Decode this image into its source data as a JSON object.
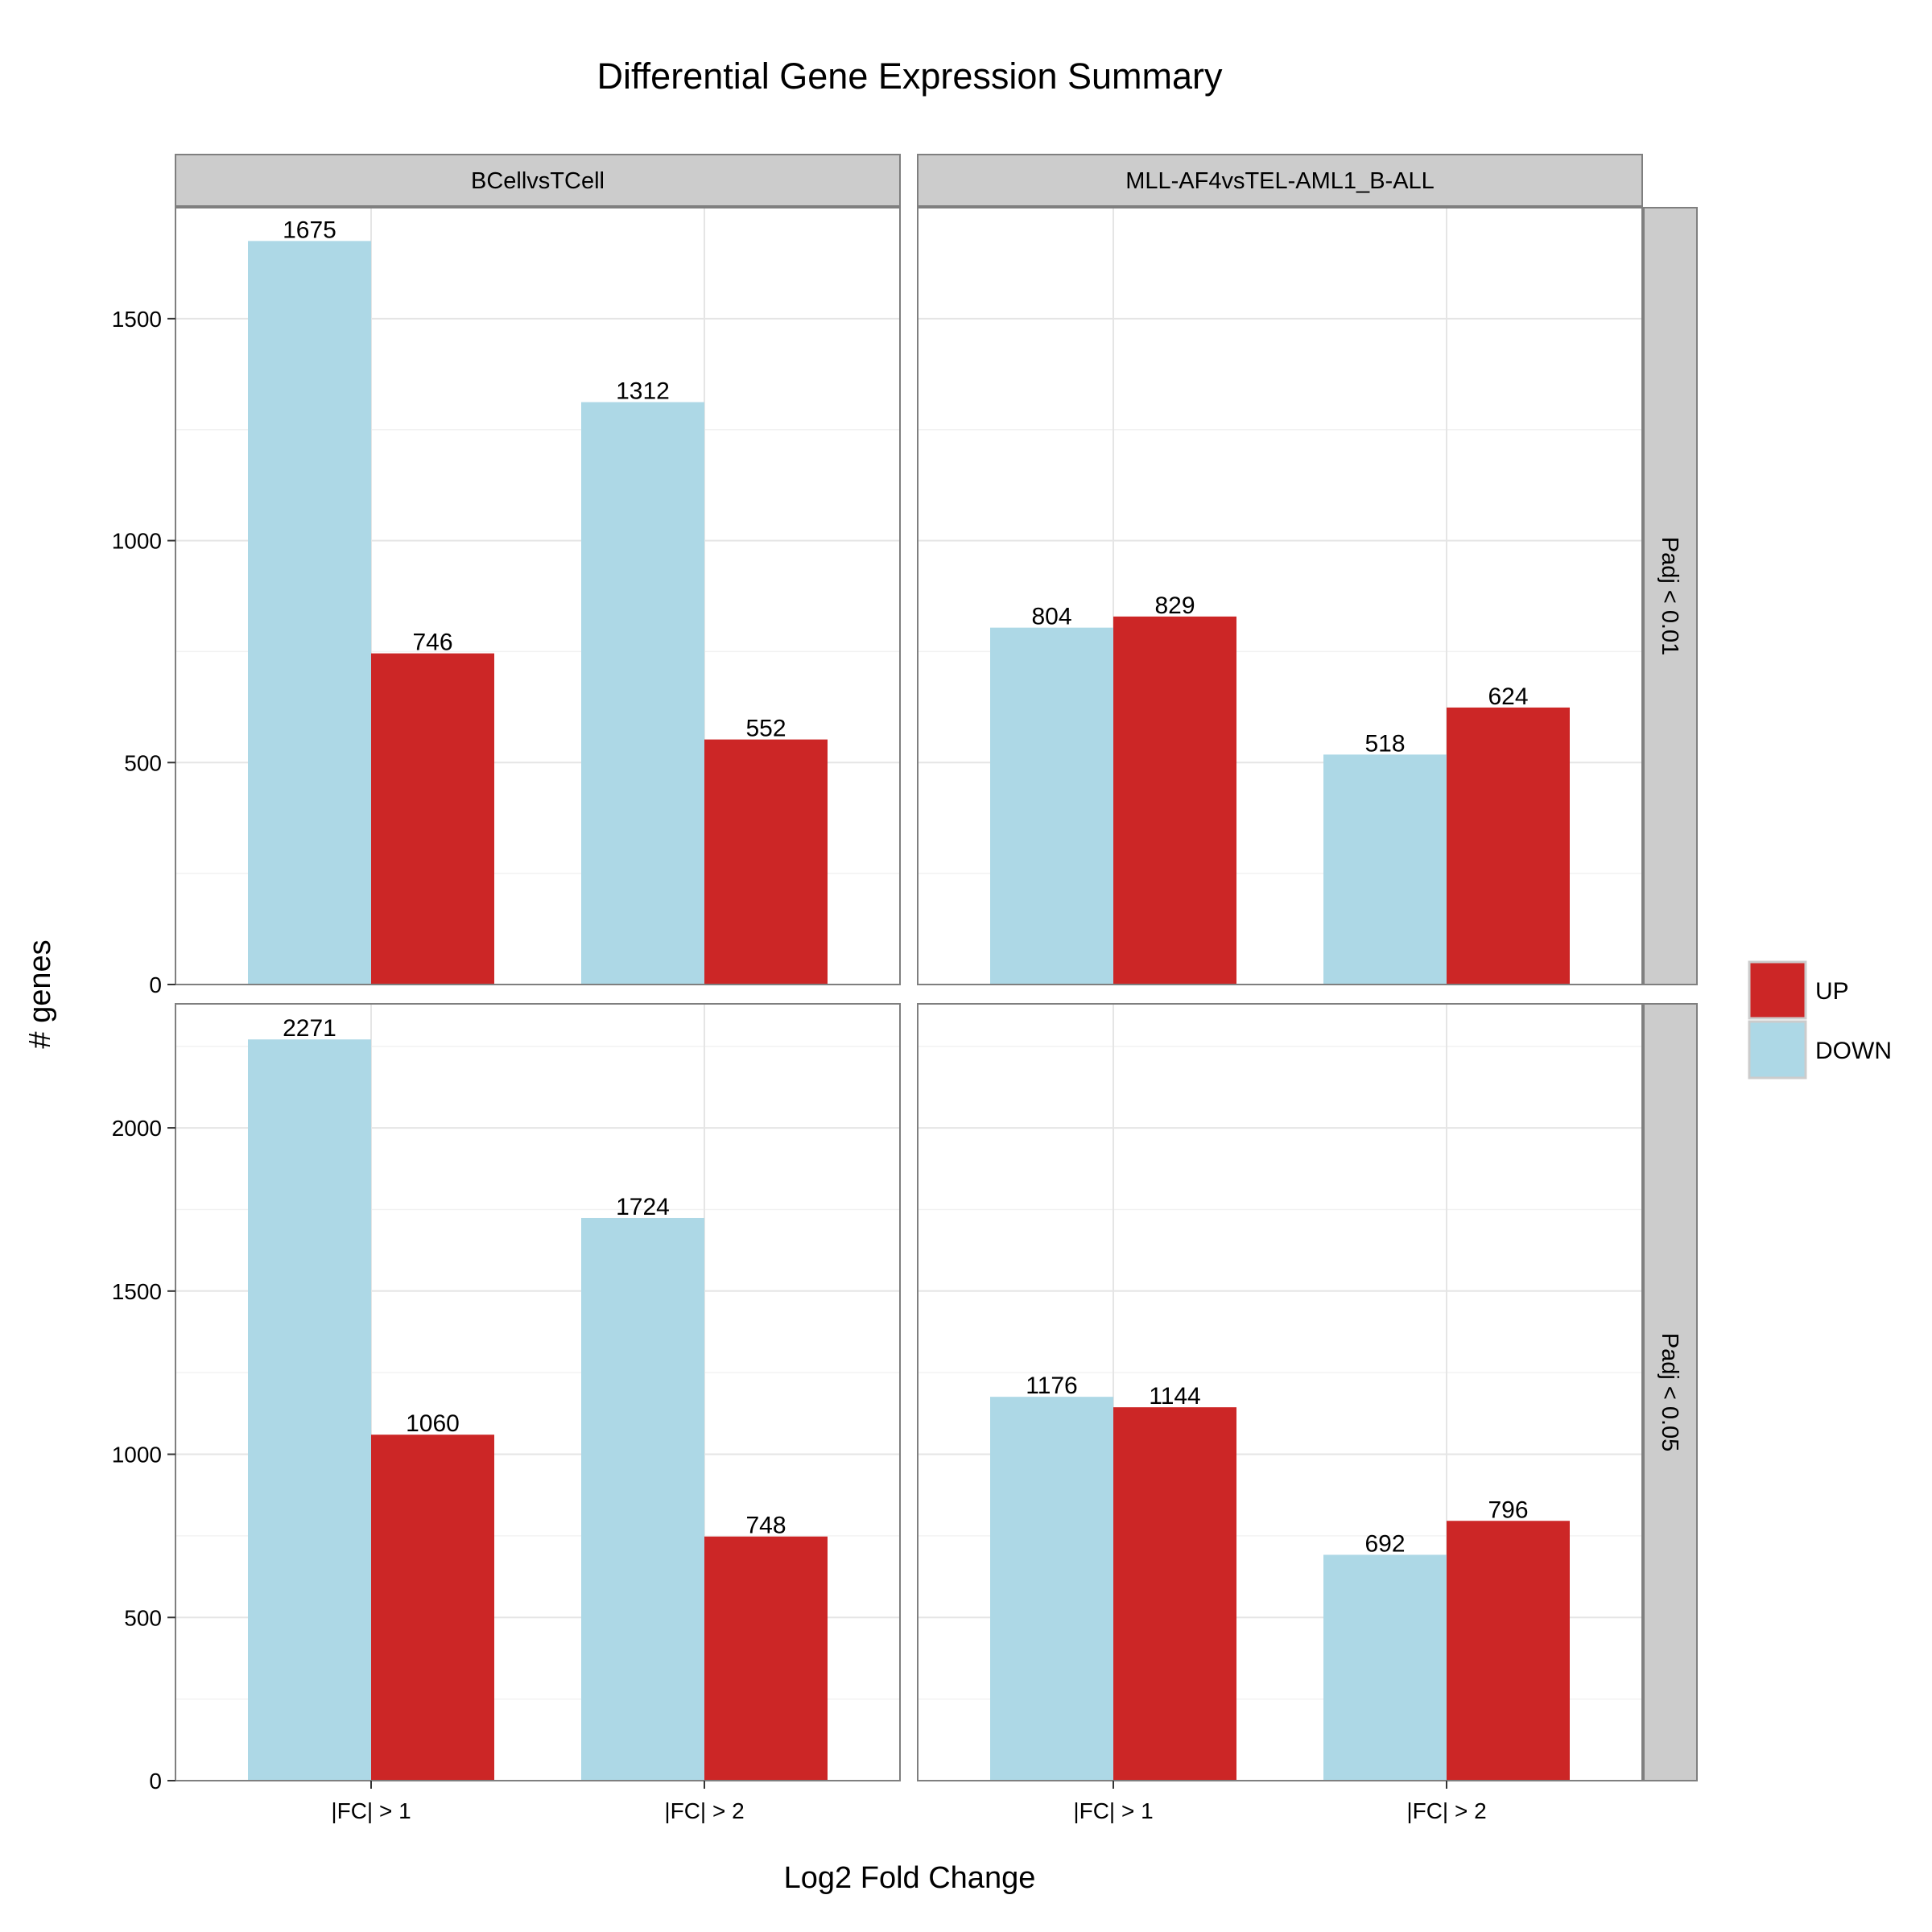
{
  "chart_data": {
    "type": "bar",
    "title": "Differential Gene Expression Summary",
    "xlabel": "Log2 Fold Change",
    "ylabel": "# genes",
    "categories": [
      "|FC| > 1",
      "|FC| > 2"
    ],
    "columns": [
      "BCellvsTCell",
      "MLL-AF4vsTEL-AML1_B-ALL"
    ],
    "rows": [
      "Padj < 0.01",
      "Padj < 0.05"
    ],
    "legend": {
      "position": "right",
      "entries": [
        {
          "name": "UP",
          "color": "#cc2626"
        },
        {
          "name": "DOWN",
          "color": "#add8e6"
        }
      ]
    },
    "grid": true,
    "panels": [
      {
        "row": "Padj < 0.01",
        "column": "BCellvsTCell",
        "ylim": [
          0,
          1750
        ],
        "yticks": [
          0,
          500,
          1000,
          1500
        ],
        "series": [
          {
            "name": "DOWN",
            "values": [
              1675,
              1312
            ]
          },
          {
            "name": "UP",
            "values": [
              746,
              552
            ]
          }
        ]
      },
      {
        "row": "Padj < 0.01",
        "column": "MLL-AF4vsTEL-AML1_B-ALL",
        "ylim": [
          0,
          1750
        ],
        "yticks": [
          0,
          500,
          1000,
          1500
        ],
        "series": [
          {
            "name": "DOWN",
            "values": [
              804,
              518
            ]
          },
          {
            "name": "UP",
            "values": [
              829,
              624
            ]
          }
        ]
      },
      {
        "row": "Padj < 0.05",
        "column": "BCellvsTCell",
        "ylim": [
          0,
          2380
        ],
        "yticks": [
          0,
          500,
          1000,
          1500,
          2000
        ],
        "series": [
          {
            "name": "DOWN",
            "values": [
              2271,
              1724
            ]
          },
          {
            "name": "UP",
            "values": [
              1060,
              748
            ]
          }
        ]
      },
      {
        "row": "Padj < 0.05",
        "column": "MLL-AF4vsTEL-AML1_B-ALL",
        "ylim": [
          0,
          2380
        ],
        "yticks": [
          0,
          500,
          1000,
          1500,
          2000
        ],
        "series": [
          {
            "name": "DOWN",
            "values": [
              1176,
              692
            ]
          },
          {
            "name": "UP",
            "values": [
              1144,
              796
            ]
          }
        ]
      }
    ]
  }
}
